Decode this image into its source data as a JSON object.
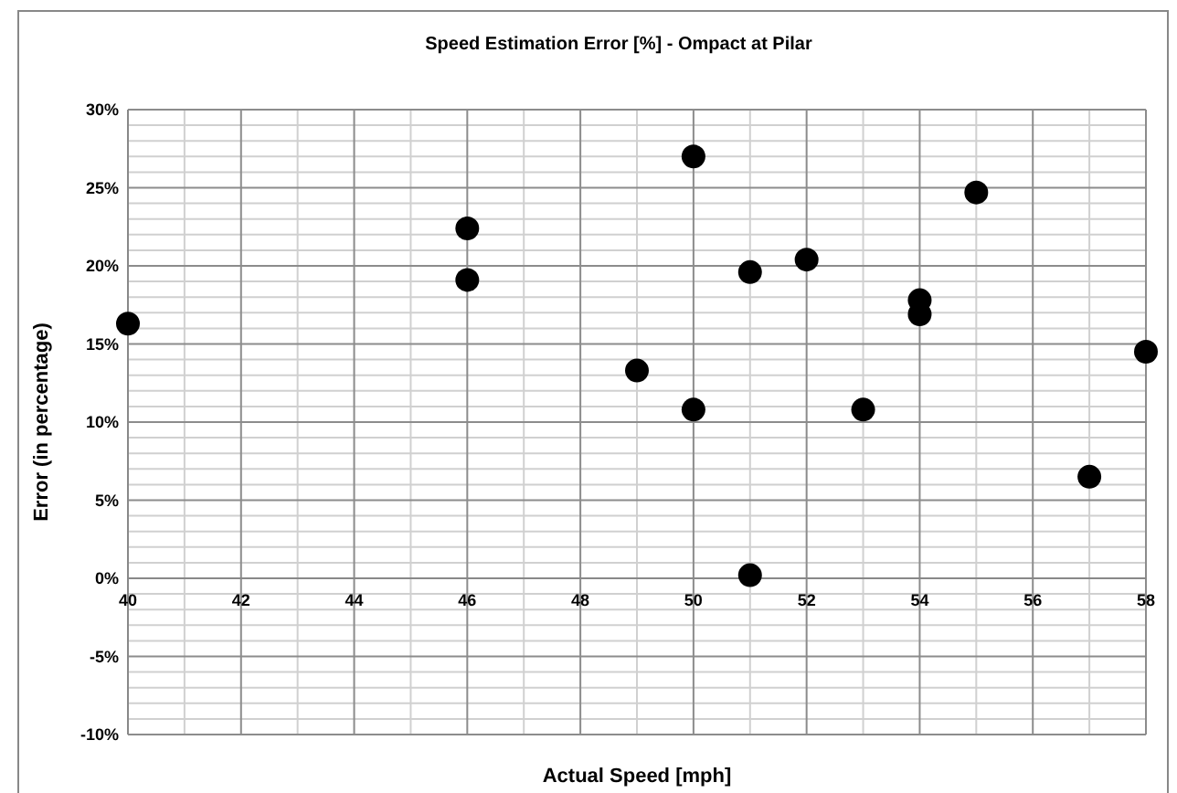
{
  "chart_data": {
    "type": "scatter",
    "title": "Speed Estimation Error [%] - Ompact at Pilar",
    "xlabel": "Actual Speed [mph]",
    "ylabel": "Error (in percentage)",
    "x": [
      40,
      46,
      46,
      49,
      50,
      50,
      51,
      51,
      52,
      53,
      54,
      54,
      55,
      57,
      58
    ],
    "series": [
      {
        "color": "#000000",
        "values": [
          16.3,
          22.4,
          19.1,
          13.3,
          27.0,
          10.8,
          19.6,
          0.2,
          20.4,
          10.8,
          17.8,
          16.9,
          24.7,
          6.5,
          14.5
        ]
      }
    ],
    "xlim": [
      40,
      58
    ],
    "xticks": [
      40,
      42,
      44,
      46,
      48,
      50,
      52,
      54,
      56,
      58
    ],
    "ylim": [
      -10,
      30
    ],
    "yticks": [
      {
        "value": -10,
        "label": "-10%"
      },
      {
        "value": -5,
        "label": "-5%"
      },
      {
        "value": 0,
        "label": "0%"
      },
      {
        "value": 5,
        "label": "5%"
      },
      {
        "value": 10,
        "label": "10%"
      },
      {
        "value": 15,
        "label": "15%"
      },
      {
        "value": 20,
        "label": "20%"
      },
      {
        "value": 25,
        "label": "25%"
      },
      {
        "value": 30,
        "label": "30%"
      }
    ],
    "grid": true,
    "marker": "circle"
  }
}
